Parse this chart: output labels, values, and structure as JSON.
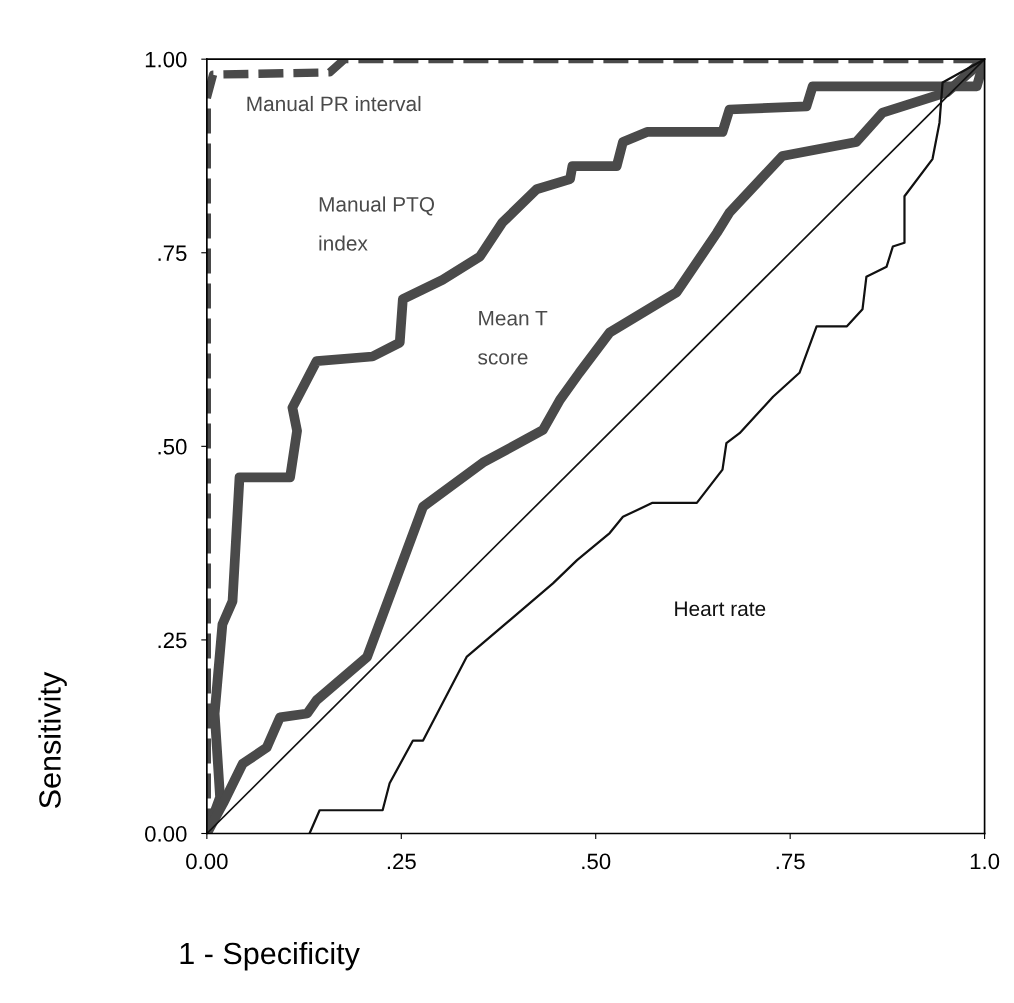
{
  "chart_data": {
    "type": "line",
    "xlabel": "1 - Specificity",
    "ylabel": "Sensitivity",
    "xlim": [
      0,
      1
    ],
    "ylim": [
      0,
      1
    ],
    "xticks": [
      {
        "value": 0,
        "label": "0.00"
      },
      {
        "value": 0.25,
        "label": ".25"
      },
      {
        "value": 0.5,
        "label": ".50"
      },
      {
        "value": 0.75,
        "label": ".75"
      },
      {
        "value": 1,
        "label": "1.0"
      }
    ],
    "yticks": [
      {
        "value": 0,
        "label": "0.00"
      },
      {
        "value": 0.25,
        "label": ".25"
      },
      {
        "value": 0.5,
        "label": ".50"
      },
      {
        "value": 0.75,
        "label": ".75"
      },
      {
        "value": 1,
        "label": "1.00"
      }
    ],
    "series": [
      {
        "name": "Manual PR interval",
        "color": "#4a4a4a",
        "line_style": "dashed",
        "x": [
          0,
          0,
          0.008,
          0.158,
          0.177,
          1
        ],
        "values": [
          0,
          0.95,
          0.98,
          0.983,
          1.0,
          1
        ]
      },
      {
        "name": "Manual PTQ\nindex",
        "color": "#4a4a4a",
        "x": [
          0,
          0.017,
          0.01,
          0.02,
          0.033,
          0.042,
          0.107,
          0.116,
          0.11,
          0.141,
          0.213,
          0.248,
          0.252,
          0.303,
          0.351,
          0.38,
          0.424,
          0.467,
          0.47,
          0.527,
          0.535,
          0.566,
          0.663,
          0.672,
          0.771,
          0.779,
          0.99,
          1
        ],
        "values": [
          0,
          0.047,
          0.155,
          0.27,
          0.3,
          0.46,
          0.46,
          0.52,
          0.55,
          0.61,
          0.616,
          0.634,
          0.69,
          0.715,
          0.745,
          0.789,
          0.832,
          0.845,
          0.862,
          0.862,
          0.893,
          0.906,
          0.906,
          0.935,
          0.939,
          0.965,
          0.965,
          1
        ]
      },
      {
        "name": "Mean T\nscore",
        "color": "#4a4a4a",
        "x": [
          0,
          0.021,
          0.046,
          0.077,
          0.094,
          0.129,
          0.141,
          0.206,
          0.278,
          0.355,
          0.432,
          0.454,
          0.479,
          0.518,
          0.604,
          0.656,
          0.672,
          0.74,
          0.835,
          0.869,
          0.951,
          1
        ],
        "values": [
          0,
          0.039,
          0.09,
          0.111,
          0.15,
          0.155,
          0.172,
          0.228,
          0.422,
          0.479,
          0.521,
          0.56,
          0.595,
          0.647,
          0.699,
          0.776,
          0.802,
          0.875,
          0.893,
          0.931,
          0.957,
          1
        ]
      },
      {
        "name": "Heart rate",
        "color": "#111111",
        "x": [
          0.132,
          0.145,
          0.226,
          0.235,
          0.265,
          0.278,
          0.334,
          0.445,
          0.476,
          0.518,
          0.535,
          0.573,
          0.63,
          0.663,
          0.668,
          0.685,
          0.728,
          0.762,
          0.784,
          0.823,
          0.843,
          0.848,
          0.874,
          0.882,
          0.897,
          0.897,
          0.933,
          0.942,
          0.946,
          1
        ],
        "values": [
          0,
          0.03,
          0.03,
          0.065,
          0.12,
          0.12,
          0.228,
          0.323,
          0.353,
          0.388,
          0.409,
          0.427,
          0.427,
          0.47,
          0.504,
          0.517,
          0.564,
          0.595,
          0.655,
          0.655,
          0.677,
          0.719,
          0.732,
          0.758,
          0.763,
          0.823,
          0.871,
          0.918,
          0.97,
          1
        ]
      },
      {
        "color": "#111111",
        "x": [
          0,
          1
        ],
        "values": [
          0,
          1
        ]
      }
    ]
  }
}
